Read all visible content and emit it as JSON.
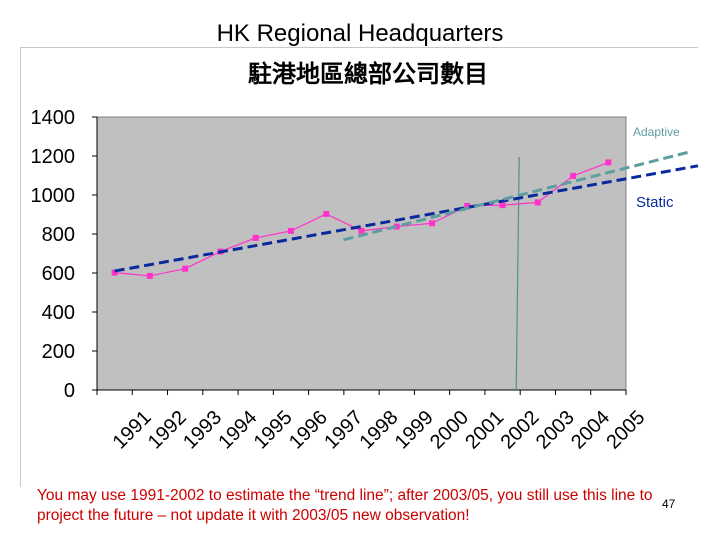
{
  "slide": {
    "title": "HK Regional Headquarters",
    "footnote": "You may use 1991-2002 to estimate the “trend line”; after 2003/05, you still use this line to project the future – not update it with 2003/05 new observation!",
    "page_number": "47"
  },
  "chart_data": {
    "type": "line",
    "title": "駐港地區總部公司數目",
    "xlabel": "",
    "ylabel": "",
    "categories": [
      "1991",
      "1992",
      "1993",
      "1994",
      "1995",
      "1996",
      "1997",
      "1998",
      "1999",
      "2000",
      "2001",
      "2002",
      "2003",
      "2004",
      "2005"
    ],
    "ylim": [
      0,
      1400
    ],
    "yticks": [
      0,
      200,
      400,
      600,
      800,
      1000,
      1200,
      1400
    ],
    "grid": false,
    "series": [
      {
        "name": "",
        "color": "#ff33cc",
        "marker": "square",
        "values": [
          602,
          585,
          622,
          710,
          780,
          816,
          903,
          816,
          838,
          855,
          944,
          948,
          962,
          1098,
          1167
        ]
      }
    ],
    "trend_lines": [
      {
        "label": "Static",
        "color": "#0a2a9c",
        "style": "dashed",
        "start": {
          "x": "1991",
          "y": 610
        },
        "end_value_at_right_edge": 1160
      },
      {
        "label": "Adaptive",
        "color": "#5f9ea0",
        "style": "dashed",
        "start": {
          "x": "1998",
          "y": 770
        },
        "end_value_at_right_edge": 1160
      }
    ],
    "vertical_marker": {
      "between": [
        "2002",
        "2003"
      ],
      "color": "#4f8f8f"
    }
  }
}
